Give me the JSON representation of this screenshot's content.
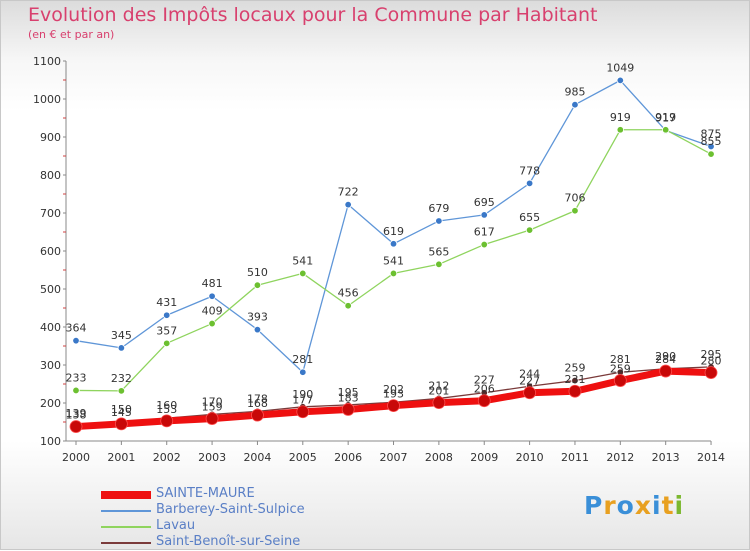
{
  "header": {
    "title": "Evolution des Impôts locaux pour la Commune par Habitant",
    "subtitle": "(en € et par an)"
  },
  "logo": {
    "letters": [
      "P",
      "r",
      "o",
      "x",
      "i",
      "t",
      "i"
    ],
    "colors": [
      "#3a8fd8",
      "#e8a020",
      "#3a8fd8",
      "#e8a020",
      "#3a8fd8",
      "#e8a020",
      "#7cb830"
    ]
  },
  "chart_data": {
    "type": "line",
    "title": "Evolution des Impôts locaux pour la Commune par Habitant",
    "subtitle": "(en € et par an)",
    "x": [
      "2000",
      "2001",
      "2002",
      "2003",
      "2004",
      "2005",
      "2006",
      "2007",
      "2008",
      "2009",
      "2010",
      "2011",
      "2012",
      "2013",
      "2014"
    ],
    "y_ticks": [
      100,
      200,
      300,
      400,
      500,
      600,
      700,
      800,
      900,
      1000,
      1100
    ],
    "ylim": [
      100,
      1100
    ],
    "grid": false,
    "legend_position": "bottom-left",
    "series": [
      {
        "name": "SAINTE-MAURE",
        "color": "#ee1010",
        "values": [
          138,
          145,
          153,
          159,
          168,
          177,
          183,
          193,
          201,
          206,
          227,
          231,
          259,
          284,
          280
        ]
      },
      {
        "name": "Barberey-Saint-Sulpice",
        "color": "#5f96d8",
        "values": [
          364,
          345,
          431,
          481,
          393,
          281,
          722,
          619,
          679,
          695,
          778,
          985,
          1049,
          917,
          875
        ]
      },
      {
        "name": "Lavau",
        "color": "#8fd45e",
        "values": [
          233,
          232,
          357,
          409,
          510,
          541,
          456,
          541,
          565,
          617,
          655,
          706,
          919,
          919,
          855
        ]
      },
      {
        "name": "Saint-Benoît-sur-Seine",
        "color": "#7a3a3a",
        "values": [
          139,
          150,
          160,
          170,
          178,
          190,
          195,
          202,
          212,
          227,
          244,
          259,
          281,
          290,
          295
        ]
      }
    ],
    "data_labels": [
      [
        "138",
        "145",
        "153",
        "159",
        "168",
        "177",
        "183",
        "193",
        "201",
        "206",
        "227",
        "231",
        "259",
        "284",
        "280"
      ],
      [
        "364",
        "345",
        "431",
        "481",
        "393",
        "281",
        "722",
        "619",
        "679",
        "695",
        "778",
        "985",
        "1049",
        "917",
        "875"
      ],
      [
        "233",
        "232",
        "357",
        "409",
        "510",
        "541",
        "456",
        "541",
        "565",
        "617",
        "655",
        "706",
        "919",
        "919",
        "855"
      ],
      [
        "139",
        "150",
        "160",
        "170",
        "178",
        "190",
        "195",
        "202",
        "212",
        "227",
        "244",
        "259",
        "281",
        "290",
        "295"
      ]
    ]
  }
}
